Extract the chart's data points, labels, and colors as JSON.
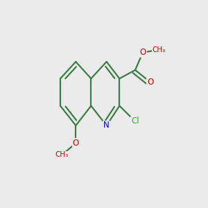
{
  "bg_color": "#ebebeb",
  "bond_color": "#3a7d44",
  "bond_width": 1.6,
  "atom_colors": {
    "N": "#0000cc",
    "O": "#cc0000",
    "Cl": "#33aa33"
  },
  "font_size_atom": 8.5,
  "font_size_label": 7.5
}
